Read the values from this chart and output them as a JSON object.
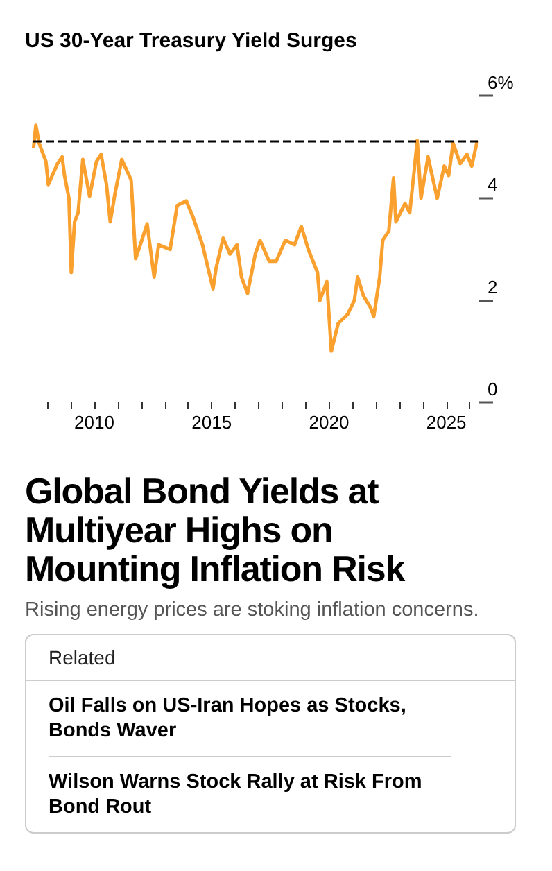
{
  "chart_data": {
    "type": "line",
    "title": "US 30-Year Treasury Yield Surges",
    "x": [
      2007.41,
      2007.51,
      2007.65,
      2007.94,
      2008.04,
      2008.43,
      2008.63,
      2008.73,
      2008.92,
      2009.02,
      2009.16,
      2009.31,
      2009.51,
      2009.8,
      2010.09,
      2010.29,
      2010.52,
      2010.68,
      2010.88,
      2011.17,
      2011.57,
      2011.76,
      2011.96,
      2012.25,
      2012.55,
      2012.74,
      2013.23,
      2013.53,
      2013.92,
      2014.21,
      2014.61,
      2015.06,
      2015.19,
      2015.49,
      2015.78,
      2016.08,
      2016.27,
      2016.53,
      2016.86,
      2017.06,
      2017.45,
      2017.75,
      2018.14,
      2018.53,
      2018.82,
      2019.12,
      2019.51,
      2019.61,
      2019.91,
      2020.1,
      2020.39,
      2020.79,
      2021.08,
      2021.22,
      2021.47,
      2021.76,
      2021.91,
      2022.16,
      2022.29,
      2022.55,
      2022.75,
      2022.85,
      2023.24,
      2023.44,
      2023.63,
      2023.76,
      2023.92,
      2024.22,
      2024.61,
      2024.91,
      2025.1,
      2025.29,
      2025.59,
      2025.88,
      2026.08,
      2026.32
    ],
    "series": [
      {
        "color": "#f9a02f",
        "values": [
          4.98,
          5.42,
          5.07,
          4.71,
          4.26,
          4.67,
          4.8,
          4.44,
          3.99,
          2.54,
          3.53,
          3.71,
          4.75,
          4.03,
          4.71,
          4.85,
          4.26,
          3.53,
          4.08,
          4.75,
          4.35,
          2.81,
          3.08,
          3.49,
          2.45,
          3.08,
          2.99,
          3.85,
          3.94,
          3.62,
          3.08,
          2.22,
          2.63,
          3.21,
          2.9,
          3.08,
          2.45,
          2.13,
          2.9,
          3.17,
          2.76,
          2.76,
          3.17,
          3.08,
          3.44,
          2.99,
          2.54,
          1.99,
          2.36,
          1.0,
          1.54,
          1.72,
          1.99,
          2.45,
          2.08,
          1.86,
          1.68,
          2.45,
          3.17,
          3.35,
          4.39,
          3.53,
          3.89,
          3.71,
          4.53,
          5.12,
          3.99,
          4.8,
          3.99,
          4.62,
          4.44,
          5.07,
          4.67,
          4.85,
          4.62,
          5.12
        ]
      }
    ],
    "xlim": [
      2007.4,
      2026.4
    ],
    "xticks": [
      {
        "value": 2008,
        "label": null
      },
      {
        "value": 2009,
        "label": null
      },
      2010,
      {
        "value": 2011,
        "label": null
      },
      {
        "value": 2012,
        "label": null
      },
      {
        "value": 2013,
        "label": null
      },
      {
        "value": 2014,
        "label": null
      },
      2015,
      {
        "value": 2016,
        "label": null
      },
      {
        "value": 2017,
        "label": null
      },
      {
        "value": 2018,
        "label": null
      },
      {
        "value": 2019,
        "label": null
      },
      2020,
      {
        "value": 2021,
        "label": null
      },
      {
        "value": 2022,
        "label": null
      },
      {
        "value": 2023,
        "label": null
      },
      {
        "value": 2024,
        "label": null
      },
      2025,
      {
        "value": 2026,
        "label": null
      }
    ],
    "ylim": [
      0,
      6
    ],
    "yticks": [
      0,
      2,
      4,
      {
        "value": 6,
        "label": "6%"
      }
    ],
    "ref_lines": [
      {
        "axis": "y",
        "value": 5.1,
        "color": "#000000",
        "line_style": "dashed"
      }
    ],
    "grid": false,
    "marker": "none",
    "line_style": "solid",
    "annotations": [
      "Global Bond Yields at Multiyear Highs on Mounting Inflation Risk",
      "Rising energy prices are stoking inflation concerns.",
      "Related",
      "Oil Falls on US-Iran Hopes as Stocks, Bonds Waver",
      "Wilson Warns Stock Rally at Risk From Bond Rout"
    ]
  }
}
